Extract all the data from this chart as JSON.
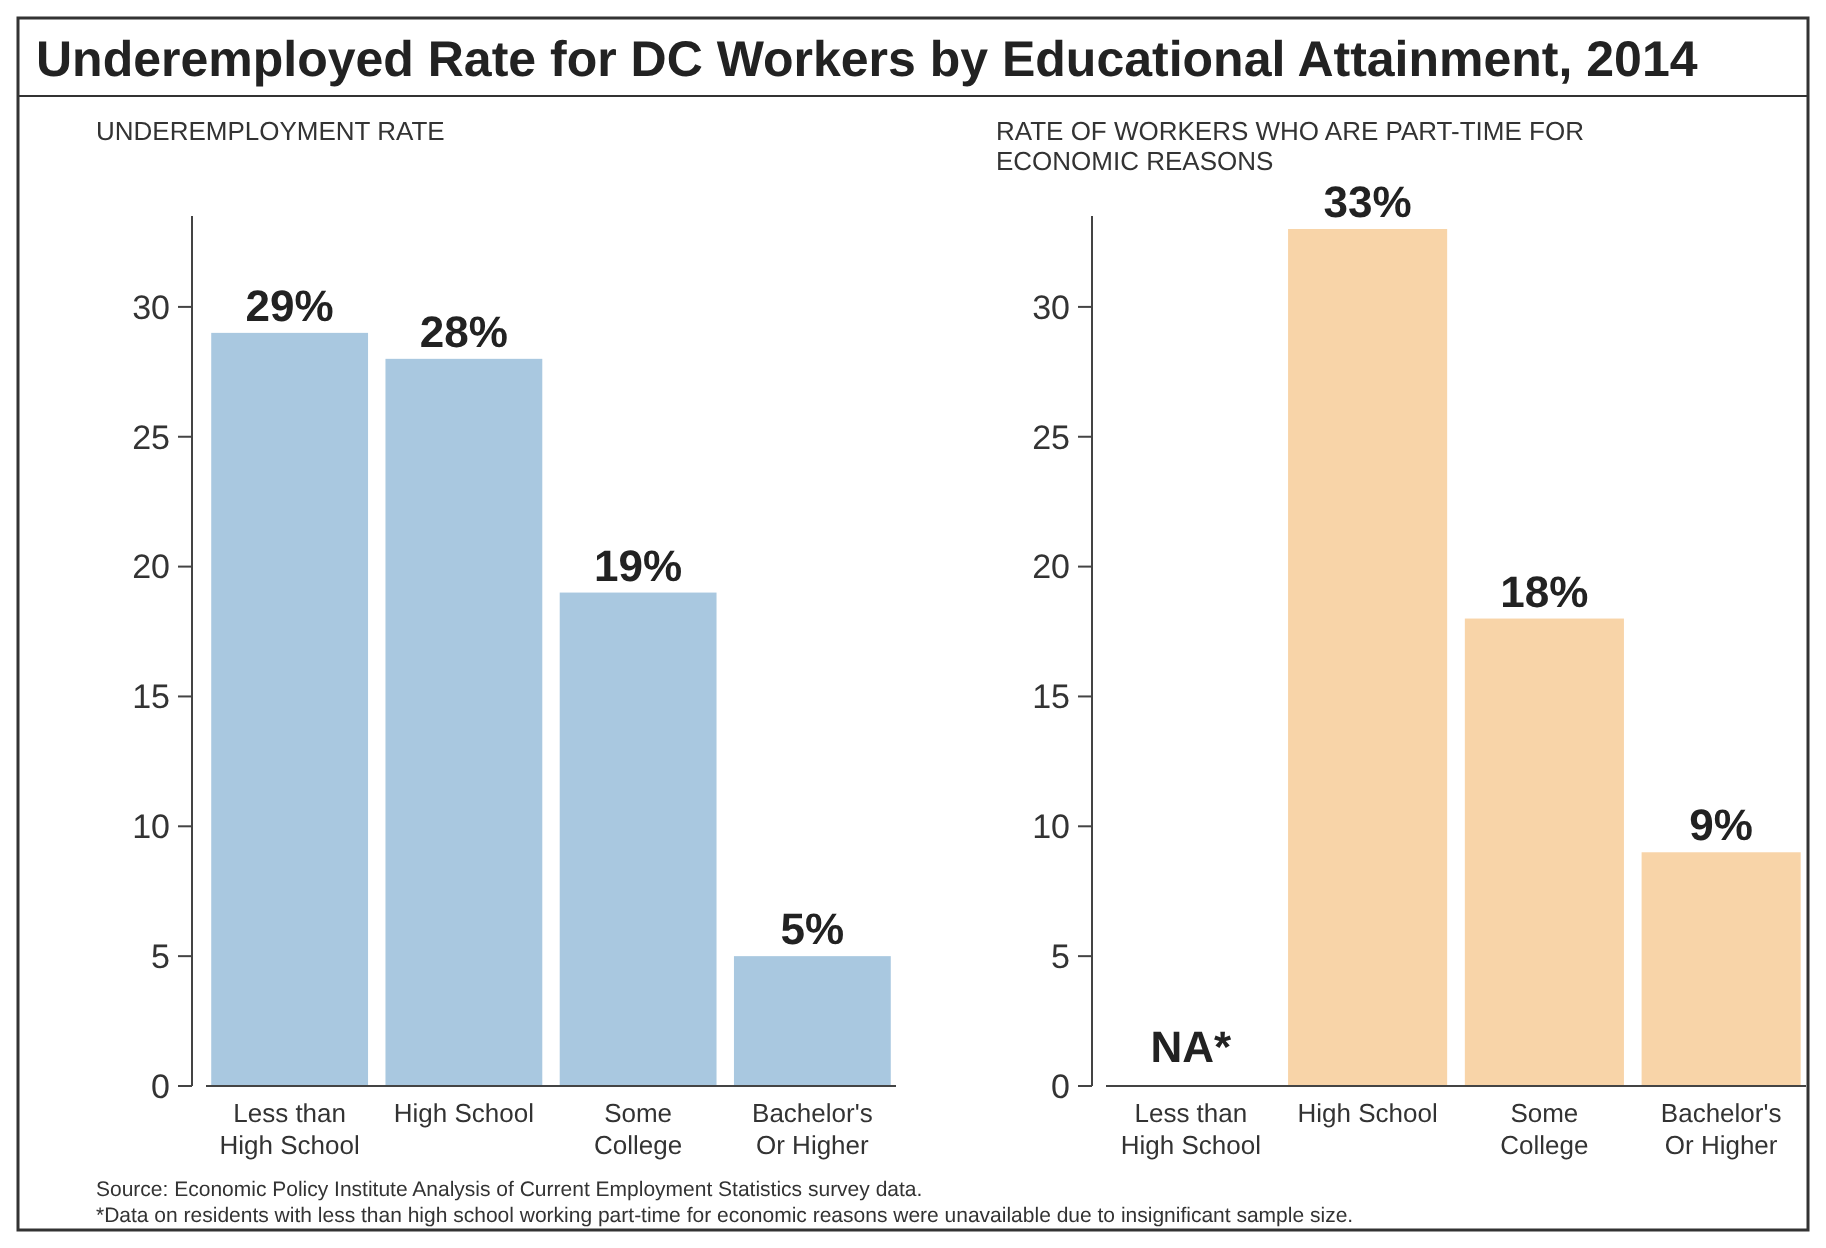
{
  "chart_data": [
    {
      "type": "bar",
      "title": "Underemployed Rate for DC Workers by Educational Attainment, 2014",
      "ylabel": "UNDEREMPLOYMENT RATE",
      "categories": [
        "Less than\nHigh School",
        "High School",
        "Some\nCollege",
        "Bachelor's\nOr Higher"
      ],
      "values": [
        29,
        28,
        19,
        5
      ],
      "value_labels": [
        "29%",
        "28%",
        "19%",
        "5%"
      ],
      "color": "#a9c8e0",
      "ylim": [
        0,
        33.5
      ],
      "yticks": [
        0,
        5,
        10,
        15,
        20,
        25,
        30
      ],
      "grid": false
    },
    {
      "type": "bar",
      "ylabel": "RATE OF WORKERS WHO ARE  PART-TIME FOR\nECONOMIC REASONS",
      "categories": [
        "Less than\nHigh School",
        "High School",
        "Some\nCollege",
        "Bachelor's\nOr Higher"
      ],
      "values": [
        null,
        33,
        18,
        9
      ],
      "value_labels": [
        "NA*",
        "33%",
        "18%",
        "9%"
      ],
      "color": "#f8d4a8",
      "ylim": [
        0,
        33.5
      ],
      "yticks": [
        0,
        5,
        10,
        15,
        20,
        25,
        30
      ],
      "grid": false,
      "annotations": [
        "Source: Economic Policy Institute Analysis of Current Employment Statistics survey data.",
        "*Data  on residents with less than high school working part-time for economic reasons were unavailable due to insignificant sample size."
      ]
    }
  ]
}
